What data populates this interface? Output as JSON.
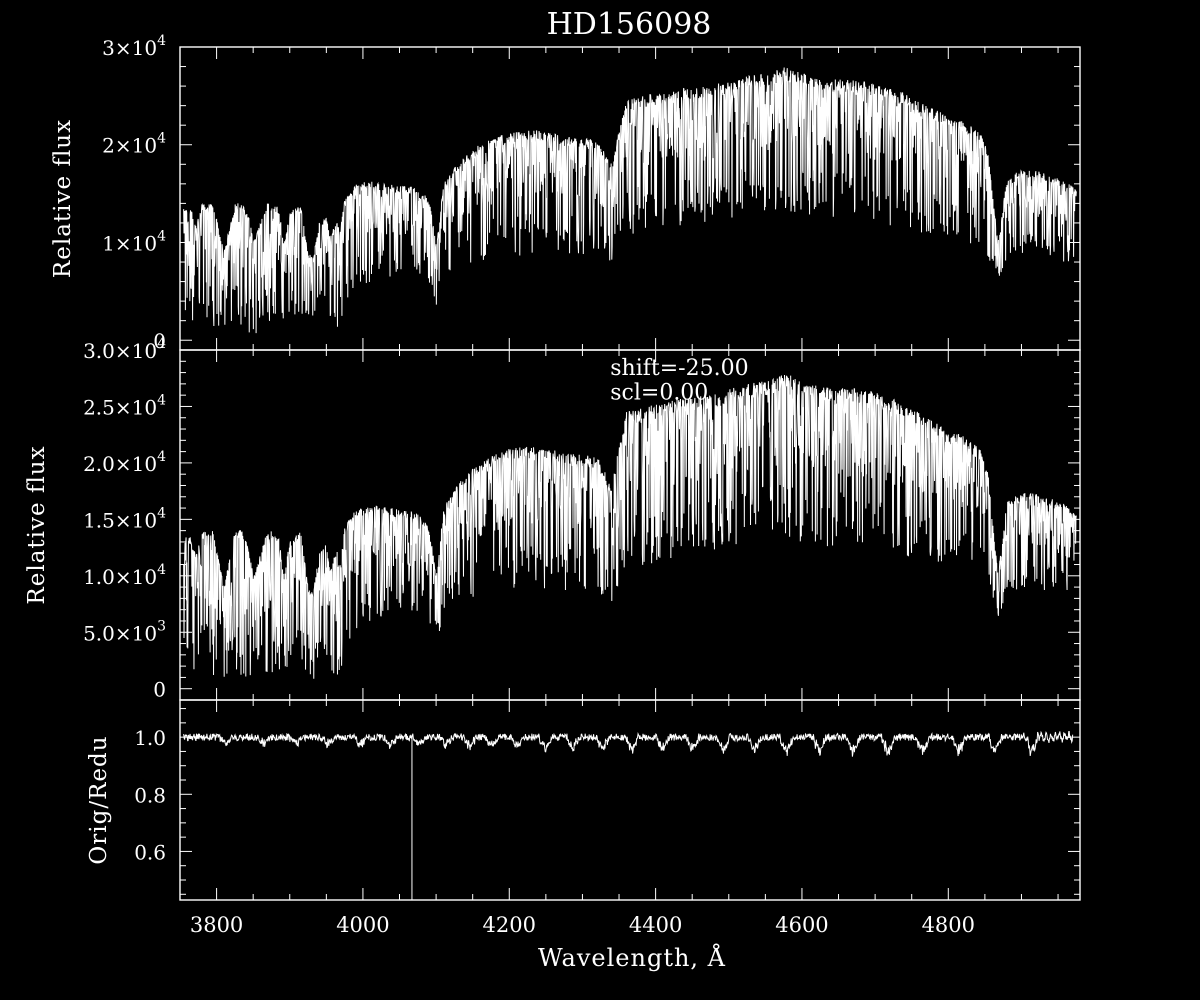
{
  "colors": {
    "background": "#000000",
    "foreground": "#ffffff"
  },
  "chart_data": {
    "title": "HD156098",
    "type": "line",
    "xlabel": "Wavelength, Å",
    "xlim": [
      3750,
      4980
    ],
    "x_ticks": [
      {
        "v": 3800,
        "label": "3800"
      },
      {
        "v": 4000,
        "label": "4000"
      },
      {
        "v": 4200,
        "label": "4200"
      },
      {
        "v": 4400,
        "label": "4400"
      },
      {
        "v": 4600,
        "label": "4600"
      },
      {
        "v": 4800,
        "label": "4800"
      }
    ],
    "x_minor_step": 50,
    "panels": [
      {
        "name": "top",
        "ylabel": "Relative flux",
        "ylim": [
          -1000,
          30000
        ],
        "y_ticks": [
          {
            "v": 0,
            "label": "0"
          },
          {
            "v": 10000,
            "mant": "1",
            "exp": "4"
          },
          {
            "v": 20000,
            "mant": "2",
            "exp": "4"
          },
          {
            "v": 30000,
            "mant": "3",
            "exp": "4"
          }
        ],
        "y_minor_step": 2000,
        "annotations": [],
        "envelope": {
          "wavelength": [
            3755,
            3765,
            3772,
            3780,
            3795,
            3810,
            3825,
            3835,
            3845,
            3850,
            3870,
            3885,
            3892,
            3900,
            3915,
            3925,
            3932,
            3940,
            3950,
            3955,
            3965,
            3968,
            3975,
            3990,
            4010,
            4040,
            4070,
            4090,
            4100,
            4103,
            4110,
            4130,
            4160,
            4200,
            4240,
            4280,
            4320,
            4340,
            4345,
            4360,
            4390,
            4430,
            4470,
            4510,
            4530,
            4560,
            4575,
            4600,
            4640,
            4690,
            4740,
            4790,
            4820,
            4845,
            4855,
            4862,
            4868,
            4880,
            4900,
            4930,
            4960,
            4975
          ],
          "continuum": [
            13500,
            13500,
            11800,
            13900,
            14200,
            9000,
            13900,
            14200,
            12500,
            10000,
            14100,
            13600,
            9800,
            13100,
            13900,
            9000,
            8400,
            12000,
            12800,
            10500,
            12500,
            10800,
            14300,
            16000,
            16300,
            16000,
            15700,
            14600,
            10000,
            11200,
            16000,
            18200,
            20100,
            21300,
            21500,
            20800,
            20600,
            18000,
            19800,
            24500,
            25200,
            25700,
            26000,
            26700,
            27100,
            27400,
            28000,
            27300,
            26800,
            26500,
            25300,
            23300,
            22400,
            21200,
            19000,
            14000,
            10000,
            16500,
            17500,
            17200,
            16300,
            15500
          ],
          "floor": [
            2000,
            2000,
            1500,
            2500,
            1200,
            900,
            1800,
            700,
            600,
            500,
            1200,
            1500,
            1000,
            1500,
            2000,
            1200,
            400,
            1500,
            2000,
            1200,
            800,
            500,
            3500,
            5000,
            6000,
            6500,
            6700,
            6000,
            3500,
            4000,
            6500,
            7500,
            8000,
            8500,
            8800,
            8600,
            8500,
            7500,
            8000,
            10500,
            11000,
            11500,
            12000,
            12500,
            12800,
            13000,
            13200,
            12800,
            12500,
            12000,
            11500,
            10500,
            10000,
            9500,
            8500,
            7000,
            6000,
            8000,
            8800,
            8500,
            8000,
            7600
          ]
        }
      },
      {
        "name": "middle",
        "ylabel": "Relative flux",
        "ylim": [
          -1000,
          30000
        ],
        "y_ticks": [
          {
            "v": 0,
            "label": "0"
          },
          {
            "v": 5000,
            "mant": "5.0",
            "exp": "3"
          },
          {
            "v": 10000,
            "mant": "1.0",
            "exp": "4"
          },
          {
            "v": 15000,
            "mant": "1.5",
            "exp": "4"
          },
          {
            "v": 20000,
            "mant": "2.0",
            "exp": "4"
          },
          {
            "v": 25000,
            "mant": "2.5",
            "exp": "4"
          },
          {
            "v": 30000,
            "mant": "3.0",
            "exp": "4"
          }
        ],
        "y_minor_step": 1000,
        "annotations": [
          {
            "label": "shift=-25.00",
            "at_x": 4338,
            "at_y": 27800
          },
          {
            "label": "scl=0.00",
            "at_x": 4338,
            "at_y": 25600
          }
        ],
        "envelope": {
          "wavelength": [
            3755,
            3765,
            3772,
            3780,
            3795,
            3810,
            3825,
            3835,
            3845,
            3850,
            3870,
            3885,
            3892,
            3900,
            3915,
            3925,
            3932,
            3940,
            3950,
            3955,
            3965,
            3968,
            3975,
            3990,
            4010,
            4040,
            4070,
            4090,
            4100,
            4103,
            4110,
            4130,
            4160,
            4200,
            4240,
            4280,
            4320,
            4340,
            4345,
            4360,
            4390,
            4430,
            4470,
            4510,
            4530,
            4560,
            4575,
            4600,
            4640,
            4690,
            4740,
            4790,
            4820,
            4845,
            4855,
            4862,
            4868,
            4880,
            4900,
            4930,
            4960,
            4975
          ],
          "continuum": [
            13500,
            13500,
            11800,
            13900,
            14200,
            9000,
            13900,
            14200,
            12500,
            10000,
            14100,
            13600,
            9800,
            13100,
            13900,
            9000,
            8400,
            12000,
            12800,
            10500,
            12500,
            10800,
            14300,
            16000,
            16300,
            16000,
            15700,
            14600,
            10000,
            11200,
            16000,
            18200,
            20100,
            21300,
            21500,
            20800,
            20600,
            18000,
            19800,
            24500,
            25200,
            25700,
            26000,
            26700,
            27100,
            27400,
            28000,
            27300,
            26800,
            26500,
            25300,
            23300,
            22400,
            21200,
            19000,
            14000,
            10000,
            16500,
            17500,
            17200,
            16300,
            15500
          ],
          "floor": [
            2000,
            2000,
            1500,
            2500,
            1200,
            900,
            1800,
            700,
            600,
            500,
            1200,
            1500,
            1000,
            1500,
            2000,
            1200,
            400,
            1500,
            2000,
            1200,
            800,
            500,
            3500,
            5000,
            6000,
            6500,
            6700,
            6000,
            3500,
            4000,
            6500,
            7500,
            8000,
            8500,
            8800,
            8600,
            8500,
            7500,
            8000,
            10500,
            11000,
            11500,
            12000,
            12500,
            12800,
            13000,
            13200,
            12800,
            12500,
            12000,
            11500,
            10500,
            10000,
            9500,
            8500,
            7000,
            6000,
            8000,
            8800,
            8500,
            8000,
            7600
          ]
        }
      },
      {
        "name": "ratio",
        "ylabel": "Orig/Redu",
        "ylim": [
          0.43,
          1.13
        ],
        "y_ticks": [
          {
            "v": 0.6,
            "label": "0.6"
          },
          {
            "v": 0.8,
            "label": "0.8"
          },
          {
            "v": 1.0,
            "label": "1.0"
          }
        ],
        "y_minor_step": 0.05,
        "annotations": [],
        "ratio": {
          "baseline": 1.0,
          "dip_at": [
            3810,
            3862,
            3906,
            3951,
            3995,
            4036,
            4075,
            4111,
            4144,
            4174,
            4209,
            4247,
            4285,
            4326,
            4366,
            4407,
            4448,
            4490,
            4533,
            4577,
            4622,
            4668,
            4715,
            4763,
            4812,
            4862,
            4912
          ],
          "spike": {
            "x": 4067,
            "low": 0.43
          }
        }
      }
    ]
  }
}
